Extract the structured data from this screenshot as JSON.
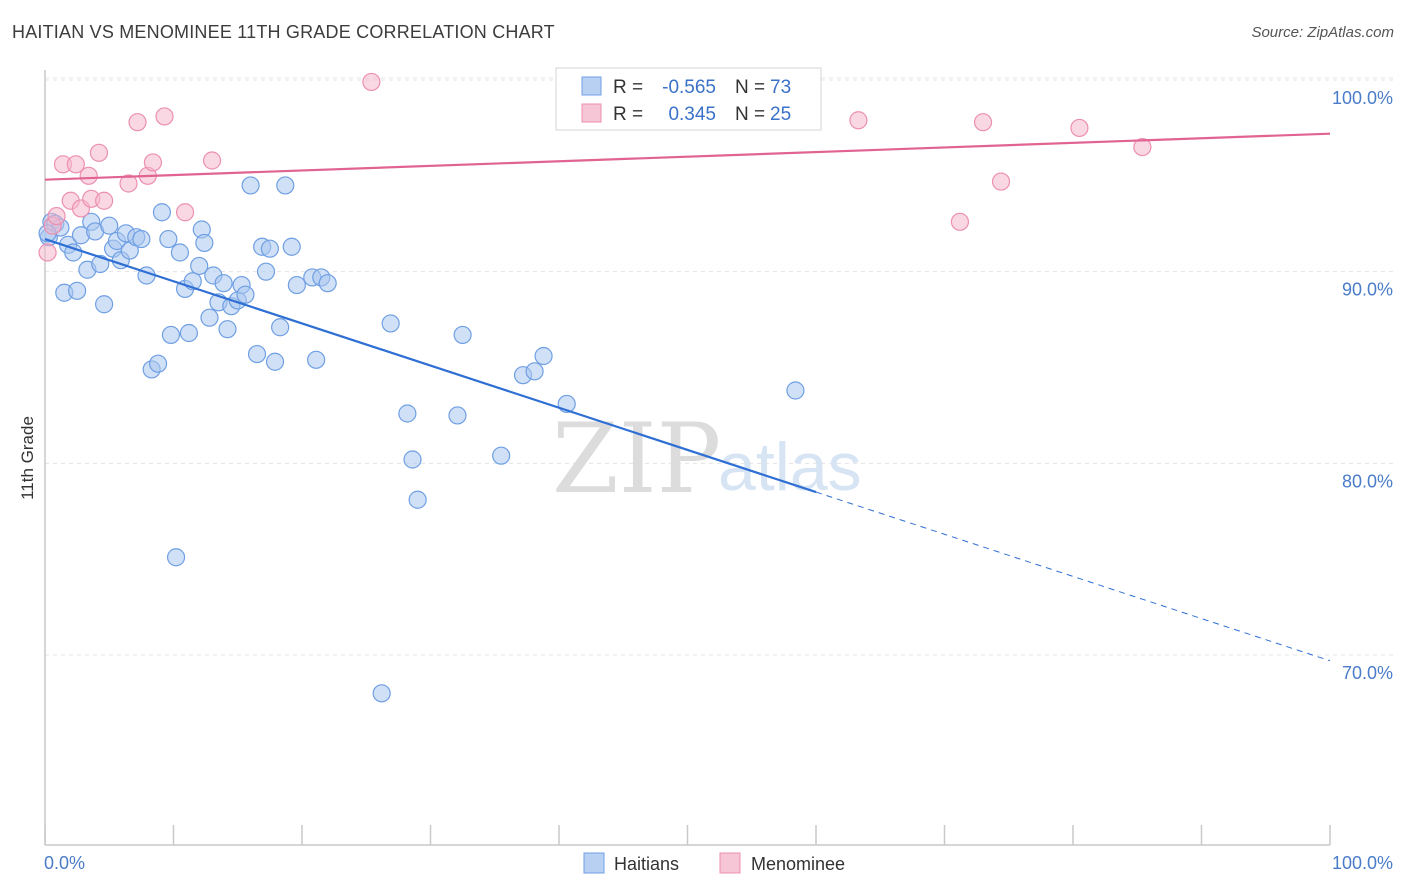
{
  "title": "HAITIAN VS MENOMINEE 11TH GRADE CORRELATION CHART",
  "source": "Source: ZipAtlas.com",
  "watermark": {
    "zip": "ZIP",
    "atlas": "atlas"
  },
  "colors": {
    "blue": "#4a86e8",
    "pink": "#e8739a",
    "blue_fill": "#a9c6f0",
    "pink_fill": "#f5b8cc",
    "tick": "#4a7cc9"
  },
  "chart_data": {
    "type": "scatter",
    "title": "HAITIAN VS MENOMINEE 11TH GRADE CORRELATION CHART",
    "xlabel": "",
    "ylabel": "11th Grade",
    "xlim": [
      0,
      100
    ],
    "ylim": [
      60,
      101.5
    ],
    "x_tick_labels": [
      "0.0%",
      "100.0%"
    ],
    "y_ticks": [
      {
        "value": 100,
        "label": "100.0%"
      },
      {
        "value": 90,
        "label": "90.0%"
      },
      {
        "value": 80,
        "label": "80.0%"
      },
      {
        "value": 70,
        "label": "70.0%"
      }
    ],
    "grid": true,
    "legend": {
      "placement": "top-center",
      "r_label": "R =",
      "n_label": "N =",
      "entries": [
        {
          "name": "Haitians",
          "r": "-0.565",
          "n": "73"
        },
        {
          "name": "Menominee",
          "r": "0.345",
          "n": "25"
        }
      ]
    },
    "series": [
      {
        "name": "Haitians",
        "color": "#4a86e8",
        "trend": {
          "x0": 0,
          "y0": 91.7,
          "x1": 60,
          "y1": 78.5,
          "dash_x1": 100,
          "dash_y1": 69.7
        },
        "points": [
          [
            0.3,
            91.8
          ],
          [
            0.5,
            92.6
          ],
          [
            0.8,
            92.5
          ],
          [
            1.2,
            92.3
          ],
          [
            1.5,
            88.9
          ],
          [
            1.8,
            91.4
          ],
          [
            2.2,
            91.0
          ],
          [
            2.5,
            89.0
          ],
          [
            2.8,
            91.9
          ],
          [
            3.3,
            90.1
          ],
          [
            3.6,
            92.6
          ],
          [
            3.9,
            92.1
          ],
          [
            4.3,
            90.4
          ],
          [
            4.6,
            88.3
          ],
          [
            5.0,
            92.4
          ],
          [
            5.3,
            91.2
          ],
          [
            5.6,
            91.6
          ],
          [
            5.9,
            90.6
          ],
          [
            6.3,
            92.0
          ],
          [
            6.6,
            91.1
          ],
          [
            7.1,
            91.8
          ],
          [
            7.5,
            91.7
          ],
          [
            7.9,
            89.8
          ],
          [
            8.3,
            84.9
          ],
          [
            8.8,
            85.2
          ],
          [
            9.1,
            93.1
          ],
          [
            9.6,
            91.7
          ],
          [
            9.8,
            86.7
          ],
          [
            10.2,
            75.1
          ],
          [
            10.5,
            91.0
          ],
          [
            10.9,
            89.1
          ],
          [
            11.2,
            86.8
          ],
          [
            11.5,
            89.5
          ],
          [
            12.0,
            90.3
          ],
          [
            12.2,
            92.2
          ],
          [
            12.4,
            91.5
          ],
          [
            12.8,
            87.6
          ],
          [
            13.1,
            89.8
          ],
          [
            13.5,
            88.4
          ],
          [
            13.9,
            89.4
          ],
          [
            14.2,
            87.0
          ],
          [
            14.5,
            88.2
          ],
          [
            15.0,
            88.5
          ],
          [
            15.3,
            89.3
          ],
          [
            15.6,
            88.8
          ],
          [
            16.0,
            94.5
          ],
          [
            16.5,
            85.7
          ],
          [
            16.9,
            91.3
          ],
          [
            17.2,
            90.0
          ],
          [
            17.5,
            91.2
          ],
          [
            17.9,
            85.3
          ],
          [
            18.3,
            87.1
          ],
          [
            18.7,
            94.5
          ],
          [
            19.2,
            91.3
          ],
          [
            19.6,
            89.3
          ],
          [
            20.8,
            89.7
          ],
          [
            21.1,
            85.4
          ],
          [
            21.5,
            89.7
          ],
          [
            22.0,
            89.4
          ],
          [
            26.2,
            68.0
          ],
          [
            26.9,
            87.3
          ],
          [
            28.2,
            82.6
          ],
          [
            28.6,
            80.2
          ],
          [
            29.0,
            78.1
          ],
          [
            32.1,
            82.5
          ],
          [
            32.5,
            86.7
          ],
          [
            35.5,
            80.4
          ],
          [
            37.2,
            84.6
          ],
          [
            38.1,
            84.8
          ],
          [
            38.8,
            85.6
          ],
          [
            40.6,
            83.1
          ],
          [
            58.4,
            83.8
          ],
          [
            0.2,
            92.0
          ]
        ]
      },
      {
        "name": "Menominee",
        "color": "#e8739a",
        "trend": {
          "x0": 0,
          "y0": 94.8,
          "x1": 100,
          "y1": 97.2
        },
        "points": [
          [
            0.2,
            91.0
          ],
          [
            0.6,
            92.4
          ],
          [
            0.9,
            92.9
          ],
          [
            1.4,
            95.6
          ],
          [
            2.0,
            93.7
          ],
          [
            2.4,
            95.6
          ],
          [
            2.8,
            93.3
          ],
          [
            3.4,
            95.0
          ],
          [
            3.6,
            93.8
          ],
          [
            4.2,
            96.2
          ],
          [
            4.6,
            93.7
          ],
          [
            6.5,
            94.6
          ],
          [
            7.2,
            97.8
          ],
          [
            8.0,
            95.0
          ],
          [
            8.4,
            95.7
          ],
          [
            9.3,
            98.1
          ],
          [
            10.9,
            93.1
          ],
          [
            13.0,
            95.8
          ],
          [
            25.4,
            99.9
          ],
          [
            63.3,
            97.9
          ],
          [
            71.2,
            92.6
          ],
          [
            73.0,
            97.8
          ],
          [
            74.4,
            94.7
          ],
          [
            80.5,
            97.5
          ],
          [
            85.4,
            96.5
          ]
        ]
      }
    ]
  }
}
